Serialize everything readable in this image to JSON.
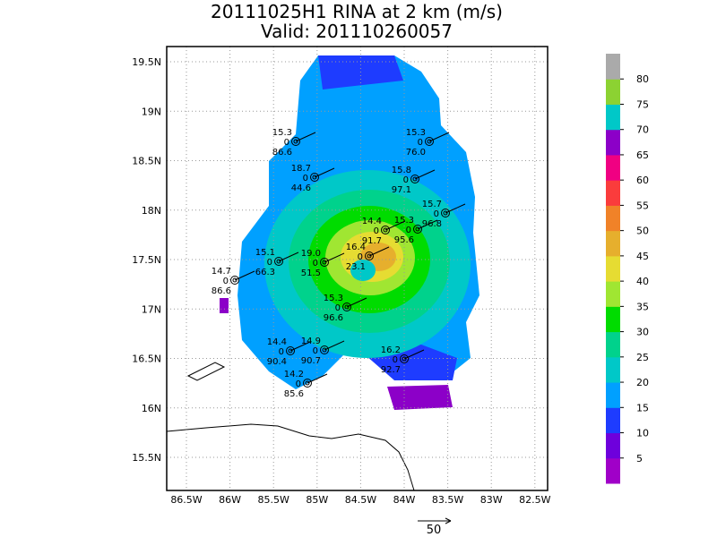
{
  "title": "20111025H1 RINA at 2 km (m/s)",
  "subtitle": "Valid: 201110260057",
  "lat_labels": [
    "19.5N",
    "19N",
    "18.5N",
    "18N",
    "17.5N",
    "17N",
    "16.5N",
    "16N",
    "15.5N"
  ],
  "lon_labels": [
    "86.5W",
    "86W",
    "85.5W",
    "85W",
    "84.5W",
    "84W",
    "83.5W",
    "83W",
    "82.5W"
  ],
  "colorbar": {
    "ticks": [
      5,
      10,
      15,
      20,
      25,
      30,
      35,
      40,
      45,
      50,
      55,
      60,
      65,
      70,
      75,
      80
    ],
    "colors": [
      "#a000c8",
      "#6e00dc",
      "#1e3cff",
      "#00a0ff",
      "#00c8c8",
      "#00d28c",
      "#00dc00",
      "#a0e632",
      "#e6dc32",
      "#e6af2d",
      "#f08228",
      "#fa3c3c",
      "#f00082",
      "#8c00c8",
      "#00c8c8",
      "#8cd232",
      "#aaaaaa"
    ]
  },
  "reference_vector": "50",
  "stations": [
    {
      "top": "15.3",
      "mid": "0",
      "bottom": "86.6"
    },
    {
      "top": "15.3",
      "mid": "0",
      "bottom": "76.0"
    },
    {
      "top": "18.7",
      "mid": "0",
      "bottom": "44.6"
    },
    {
      "top": "15.8",
      "mid": "0",
      "bottom": "97.1"
    },
    {
      "top": "15.7",
      "mid": "0",
      "bottom": "96.8"
    },
    {
      "top": "14.4",
      "mid": "0",
      "bottom": "91.7"
    },
    {
      "top": "15.3",
      "mid": "0",
      "bottom": "95.6"
    },
    {
      "top": "16.4",
      "mid": "0",
      "bottom": "23.1"
    },
    {
      "top": "15.1",
      "mid": "0",
      "bottom": "66.3"
    },
    {
      "top": "19.0",
      "mid": "0",
      "bottom": "51.5"
    },
    {
      "top": "14.7",
      "mid": "0",
      "bottom": "86.6"
    },
    {
      "top": "15.3",
      "mid": "0",
      "bottom": "96.6"
    },
    {
      "top": "14.4",
      "mid": "0",
      "bottom": "90.4"
    },
    {
      "top": "14.9",
      "mid": "0",
      "bottom": "90.7"
    },
    {
      "top": "14.2",
      "mid": "0",
      "bottom": "85.6"
    },
    {
      "top": "16.2",
      "mid": "0",
      "bottom": "92.7"
    }
  ]
}
